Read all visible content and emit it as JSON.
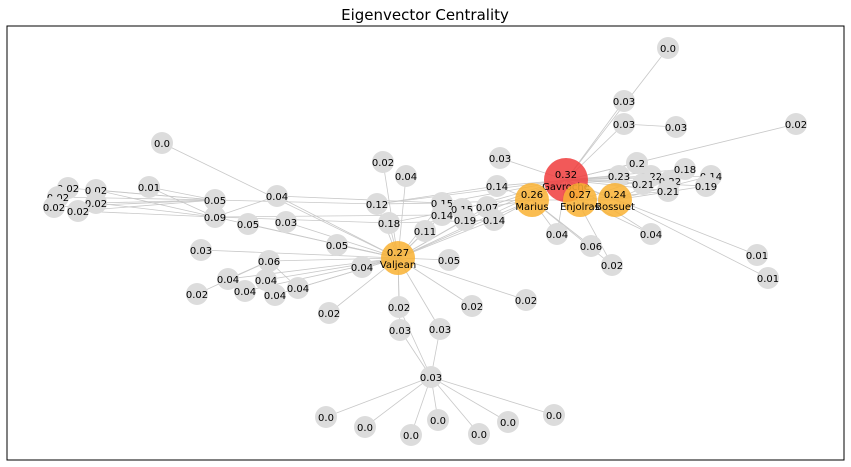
{
  "title": "Eigenvector Centrality",
  "colors": {
    "top": "#f03c3c",
    "high": "#f9b233",
    "default": "#dcdcdc",
    "edge": "#c8c8c8",
    "frame": "#000000"
  },
  "nodes": [
    {
      "id": "gavroche",
      "value": "0.32",
      "name": "Gavroche",
      "tier": "top"
    },
    {
      "id": "valjean",
      "value": "0.27",
      "name": "Valjean",
      "tier": "high"
    },
    {
      "id": "enjolras",
      "value": "0.27",
      "name": "Enjolras",
      "tier": "high"
    },
    {
      "id": "marius",
      "value": "0.26",
      "name": "Marius",
      "tier": "high"
    },
    {
      "id": "bossuet",
      "value": "0.24",
      "name": "Bossuet",
      "tier": "high"
    },
    {
      "id": "n_top",
      "value": "0.0"
    },
    {
      "id": "n_003a",
      "value": "0.03"
    },
    {
      "id": "n_003b",
      "value": "0.03"
    },
    {
      "id": "n_003c",
      "value": "0.03"
    },
    {
      "id": "n_002tr",
      "value": "0.02"
    },
    {
      "id": "n_003d",
      "value": "0.03"
    },
    {
      "id": "n_02",
      "value": "0.2"
    },
    {
      "id": "n_023",
      "value": "0.23"
    },
    {
      "id": "n_022a",
      "value": "0.22"
    },
    {
      "id": "n_022b",
      "value": "0.22"
    },
    {
      "id": "n_018",
      "value": "0.18"
    },
    {
      "id": "n_014r",
      "value": "0.14"
    },
    {
      "id": "n_021a",
      "value": "0.21"
    },
    {
      "id": "n_019r",
      "value": "0.19"
    },
    {
      "id": "n_021b",
      "value": "0.21"
    },
    {
      "id": "n_014a",
      "value": "0.14"
    },
    {
      "id": "n_007",
      "value": "0.07"
    },
    {
      "id": "n_014b",
      "value": "0.14"
    },
    {
      "id": "n_004m",
      "value": "0.04"
    },
    {
      "id": "n_006",
      "value": "0.06"
    },
    {
      "id": "n_004r",
      "value": "0.04"
    },
    {
      "id": "n_002m",
      "value": "0.02"
    },
    {
      "id": "n_001a",
      "value": "0.01"
    },
    {
      "id": "n_001b",
      "value": "0.01"
    },
    {
      "id": "n_000l",
      "value": "0.0"
    },
    {
      "id": "n_002l1",
      "value": "0.02"
    },
    {
      "id": "n_002l2",
      "value": "0.02"
    },
    {
      "id": "n_002l3",
      "value": "0.02"
    },
    {
      "id": "n_002l4",
      "value": "0.02"
    },
    {
      "id": "n_002l5",
      "value": "0.02"
    },
    {
      "id": "n_002l6",
      "value": "0.02"
    },
    {
      "id": "n_001l",
      "value": "0.01"
    },
    {
      "id": "n_005l",
      "value": "0.05"
    },
    {
      "id": "n_009",
      "value": "0.09"
    },
    {
      "id": "n_004l",
      "value": "0.04"
    },
    {
      "id": "n_005l2",
      "value": "0.05"
    },
    {
      "id": "n_003l",
      "value": "0.03"
    },
    {
      "id": "n_003l2",
      "value": "0.03"
    },
    {
      "id": "n_006l",
      "value": "0.06"
    },
    {
      "id": "n_004a",
      "value": "0.04"
    },
    {
      "id": "n_004b",
      "value": "0.04"
    },
    {
      "id": "n_004c",
      "value": "0.04"
    },
    {
      "id": "n_004d",
      "value": "0.04"
    },
    {
      "id": "n_004e",
      "value": "0.04"
    },
    {
      "id": "n_002bl",
      "value": "0.02"
    },
    {
      "id": "n_002c1",
      "value": "0.02"
    },
    {
      "id": "n_004c1",
      "value": "0.04"
    },
    {
      "id": "n_012",
      "value": "0.12"
    },
    {
      "id": "n_015",
      "value": "0.15"
    },
    {
      "id": "n_015b",
      "value": "0.15"
    },
    {
      "id": "n_014c",
      "value": "0.14"
    },
    {
      "id": "n_018c",
      "value": "0.18"
    },
    {
      "id": "n_019c",
      "value": "0.19"
    },
    {
      "id": "n_011",
      "value": "0.11"
    },
    {
      "id": "n_005c",
      "value": "0.05"
    },
    {
      "id": "n_004c2",
      "value": "0.04"
    },
    {
      "id": "n_005c2",
      "value": "0.05"
    },
    {
      "id": "n_002s1",
      "value": "0.02"
    },
    {
      "id": "n_002s2",
      "value": "0.02"
    },
    {
      "id": "n_002s3",
      "value": "0.02"
    },
    {
      "id": "n_003s1",
      "value": "0.03"
    },
    {
      "id": "n_003s2",
      "value": "0.03"
    },
    {
      "id": "n_002s4",
      "value": "0.02"
    },
    {
      "id": "n_003hub",
      "value": "0.03"
    },
    {
      "id": "n_000b1",
      "value": "0.0"
    },
    {
      "id": "n_000b2",
      "value": "0.0"
    },
    {
      "id": "n_000b3",
      "value": "0.0"
    },
    {
      "id": "n_000b4",
      "value": "0.0"
    },
    {
      "id": "n_000b5",
      "value": "0.0"
    },
    {
      "id": "n_000b6",
      "value": "0.0"
    },
    {
      "id": "n_000b7",
      "value": "0.0"
    }
  ]
}
